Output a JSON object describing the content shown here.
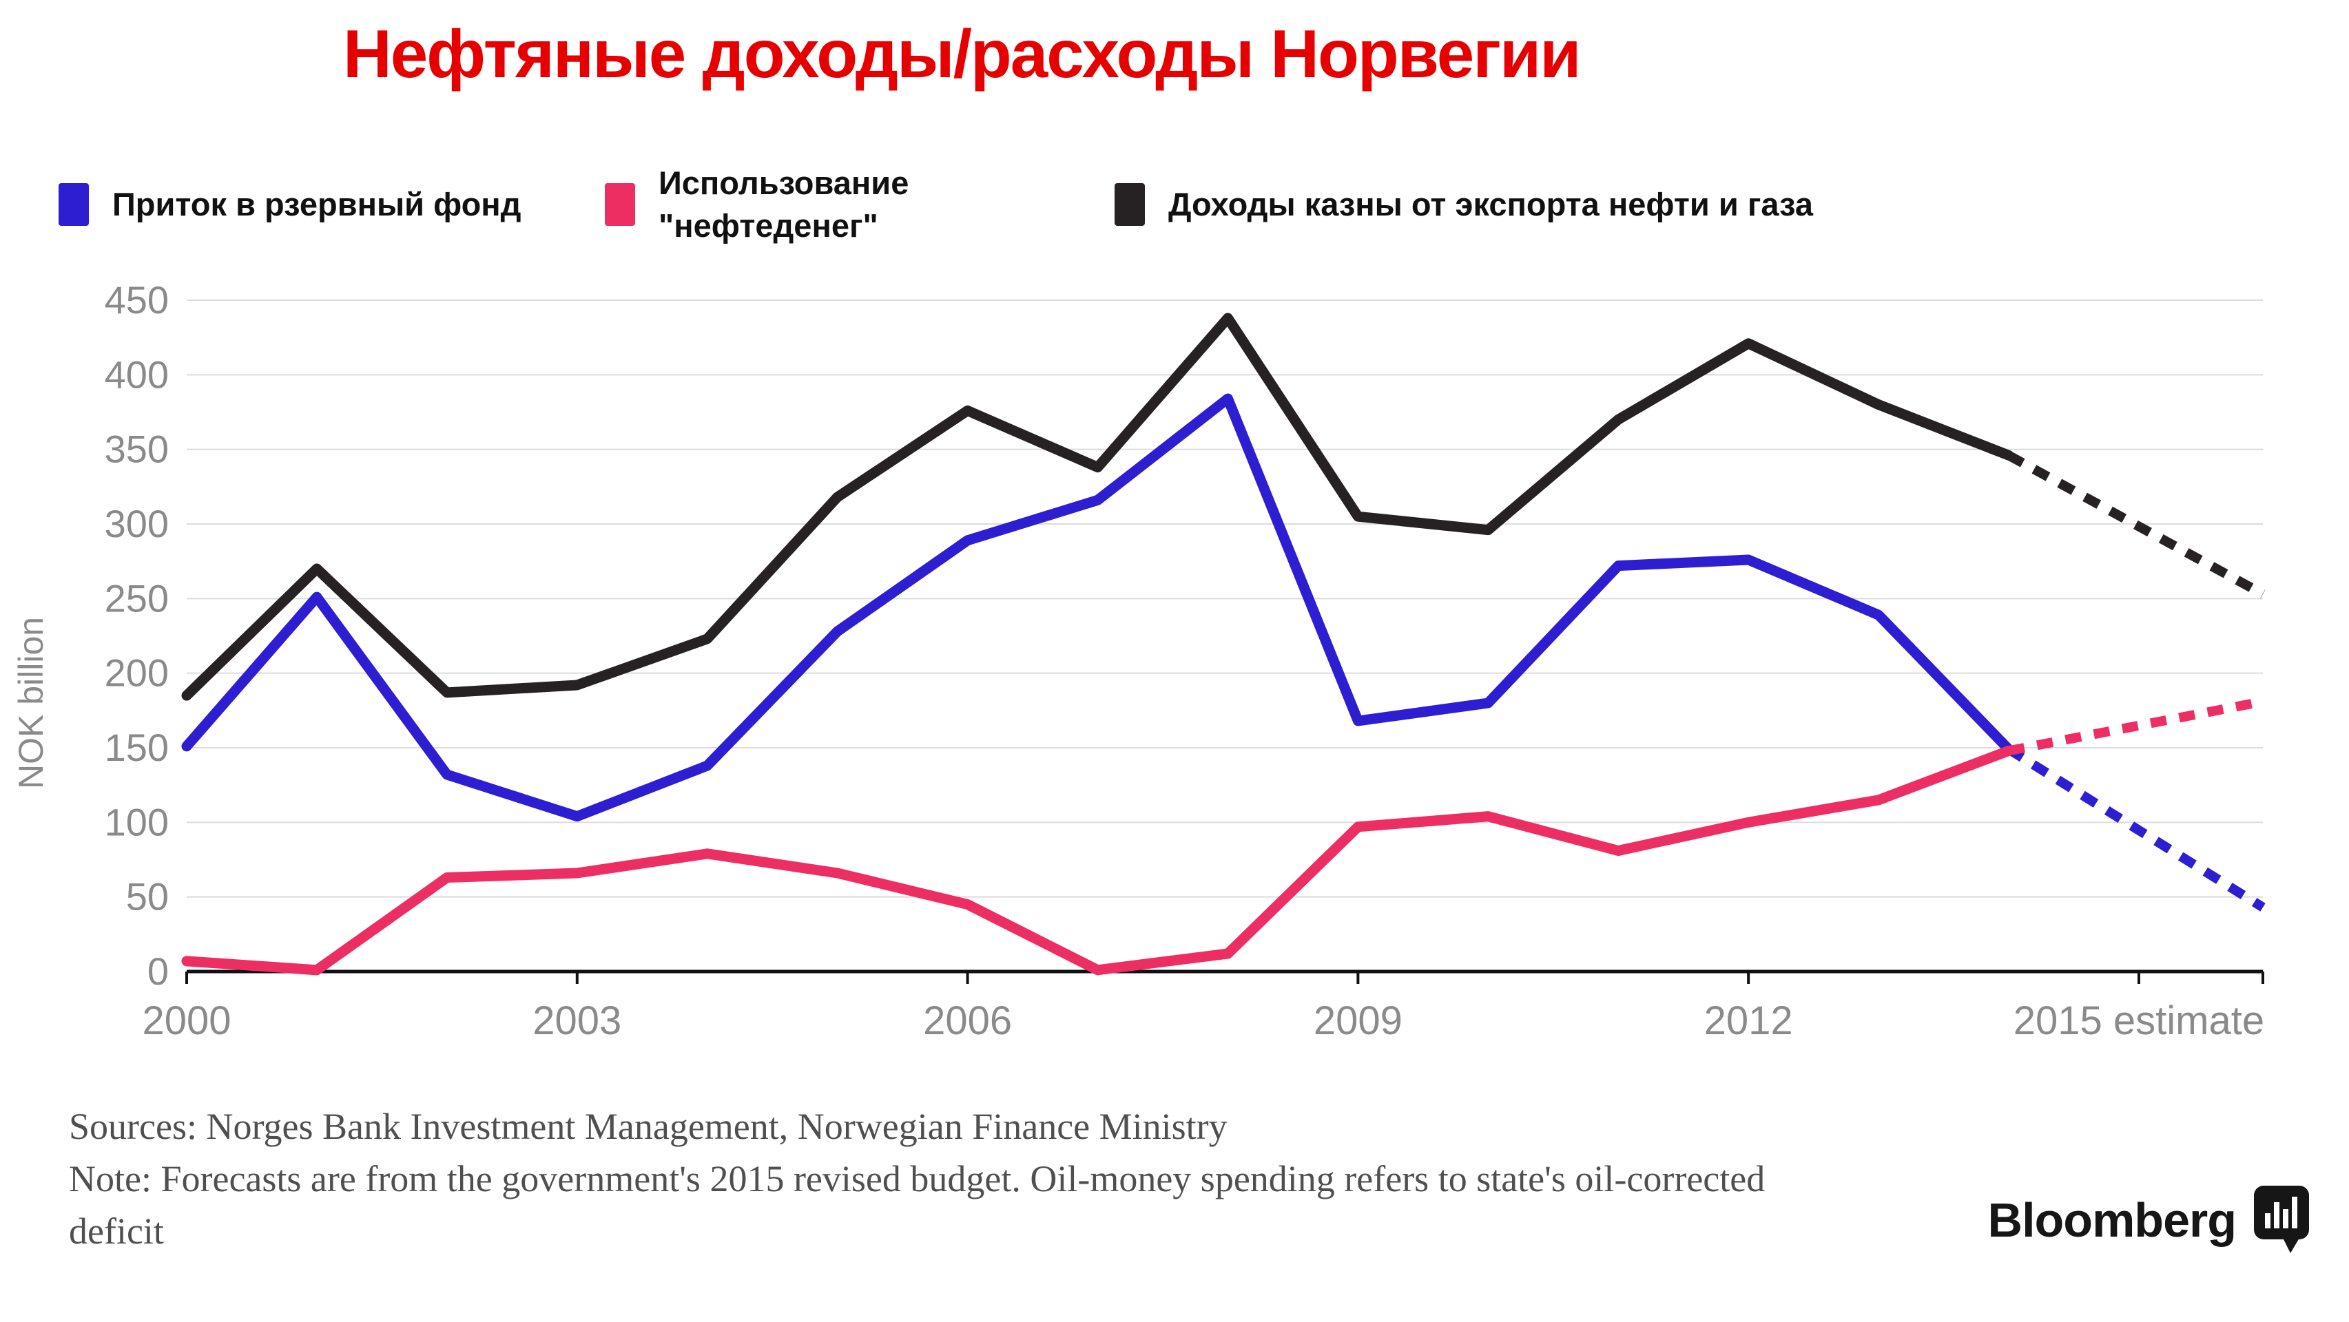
{
  "title": "Нефтяные доходы/расходы Норвегии",
  "colors": {
    "title_red": "#e60000",
    "series_blue": "#2e1ed2",
    "series_pink": "#ed2e63",
    "series_black": "#262223",
    "axis_text_gray": "#8a8a8a",
    "gridline_gray": "#dcdcdc",
    "axis_line": "#111111",
    "note_gray": "#4f4f4f",
    "background": "#ffffff"
  },
  "legend": {
    "items": [
      {
        "label": "Приток в рзервный фонд",
        "color": "#2e1ed2"
      },
      {
        "label_line1": "Использование",
        "label_line2": "\"нефтеденег\"",
        "color": "#ed2e63"
      },
      {
        "label": "Доходы казны от экспорта нефти и газа",
        "color": "#262223"
      }
    ]
  },
  "chart_data": {
    "type": "line",
    "title": "Нефтяные доходы/расходы Норвегии",
    "ylabel": "NOK billion",
    "xlabel": "",
    "ylim": [
      0,
      450
    ],
    "y_ticks": [
      0,
      50,
      100,
      150,
      200,
      250,
      300,
      350,
      400,
      450
    ],
    "grid": "horizontal",
    "legend_position": "top",
    "x": [
      2000,
      2001,
      2002,
      2003,
      2004,
      2005,
      2006,
      2007,
      2008,
      2009,
      2010,
      2011,
      2012,
      2013,
      2014
    ],
    "x_tick_labels": [
      {
        "year": 2000,
        "label": "2000"
      },
      {
        "year": 2003,
        "label": "2003"
      },
      {
        "year": 2006,
        "label": "2006"
      },
      {
        "year": 2009,
        "label": "2009"
      },
      {
        "year": 2012,
        "label": "2012"
      },
      {
        "year": 2015,
        "label": "2015 estimate"
      }
    ],
    "end_tick": true,
    "series": [
      {
        "name": "Приток в рзервный фонд",
        "color": "#2e1ed2",
        "values": [
          151,
          251,
          132,
          104,
          138,
          228,
          289,
          316,
          384,
          168,
          180,
          272,
          276,
          239,
          149
        ],
        "forecast_2015_estimate": 43
      },
      {
        "name": "Использование \"нефтеденег\"",
        "color": "#ed2e63",
        "values": [
          7,
          1,
          63,
          66,
          79,
          66,
          45,
          1,
          12,
          97,
          104,
          81,
          100,
          115,
          148
        ],
        "forecast_2015_estimate": 181
      },
      {
        "name": "Доходы казны от экспорта нефти и газа",
        "color": "#262223",
        "values": [
          185,
          270,
          187,
          192,
          223,
          318,
          376,
          338,
          438,
          305,
          296,
          370,
          421,
          380,
          346
        ],
        "forecast_2015_estimate": 253
      }
    ]
  },
  "footer": {
    "sources_line": "Sources: Norges Bank Investment Management, Norwegian Finance Ministry",
    "note_line1": "Note: Forecasts are from the government's 2015 revised budget. Oil-money spending refers to state's oil-corrected",
    "note_line2": "deficit"
  },
  "brand": {
    "name": "Bloomberg"
  }
}
